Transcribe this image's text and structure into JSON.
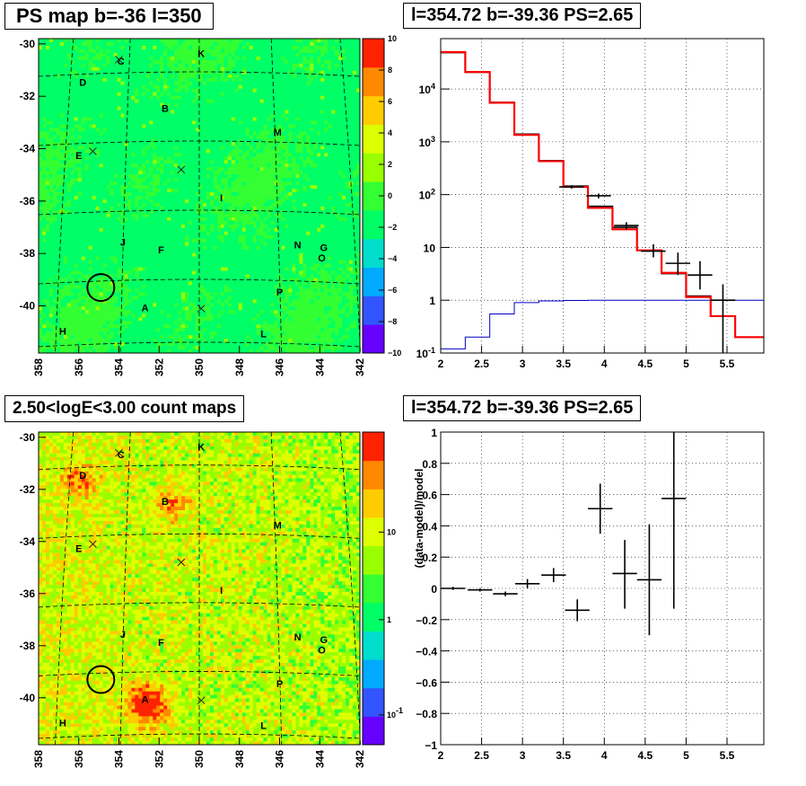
{
  "panels": {
    "tl": {
      "title": "PS map b=-36 l=350"
    },
    "tr": {
      "title": "l=354.72 b=-39.36 PS=2.65"
    },
    "bl": {
      "title": "2.50<logE<3.00 count maps"
    },
    "br": {
      "title": "l=354.72 b=-39.36 PS=2.65"
    }
  },
  "chart_data": [
    {
      "type": "heatmap",
      "title": "PS map b=-36 l=350",
      "x_ticks": [
        "358",
        "356",
        "354",
        "352",
        "350",
        "348",
        "346",
        "344",
        "342"
      ],
      "y_ticks": [
        "-30",
        "-32",
        "-34",
        "-36",
        "-38",
        "-40"
      ],
      "xlim": [
        358,
        342
      ],
      "ylim": [
        -41.8,
        -29.8
      ],
      "colorbar": {
        "range": [
          -10,
          10
        ],
        "ticks": [
          "10",
          "8",
          "6",
          "4",
          "2",
          "0",
          "−2",
          "−4",
          "−6",
          "−8",
          "−10"
        ]
      },
      "colors": [
        "#6600ff",
        "#3355ff",
        "#00aaff",
        "#00ddcc",
        "#00ff66",
        "#33ff33",
        "#99ff00",
        "#ddff00",
        "#ffcc00",
        "#ff8800",
        "#ff2200"
      ],
      "sources": [
        {
          "label": "C",
          "l": 353.9,
          "b": -30.8
        },
        {
          "label": "K",
          "l": 349.9,
          "b": -30.5
        },
        {
          "label": "D",
          "l": 355.8,
          "b": -31.6
        },
        {
          "label": "B",
          "l": 351.7,
          "b": -32.6
        },
        {
          "label": "M",
          "l": 346.1,
          "b": -33.5
        },
        {
          "label": "E",
          "l": 356.0,
          "b": -34.4
        },
        {
          "label": "I",
          "l": 348.9,
          "b": -36.0
        },
        {
          "label": "J",
          "l": 353.8,
          "b": -37.7
        },
        {
          "label": "F",
          "l": 351.9,
          "b": -38.0
        },
        {
          "label": "N",
          "l": 345.1,
          "b": -37.8
        },
        {
          "label": "G",
          "l": 343.8,
          "b": -37.9
        },
        {
          "label": "O",
          "l": 343.9,
          "b": -38.3
        },
        {
          "label": "P",
          "l": 346.0,
          "b": -39.6
        },
        {
          "label": "A",
          "l": 352.7,
          "b": -40.2
        },
        {
          "label": "H",
          "l": 356.8,
          "b": -41.1
        },
        {
          "label": "L",
          "l": 346.8,
          "b": -41.2
        }
      ],
      "crosses": [
        {
          "l": 354.0,
          "b": -30.6
        },
        {
          "l": 355.3,
          "b": -34.1
        },
        {
          "l": 350.9,
          "b": -34.8
        },
        {
          "l": 349.9,
          "b": -40.1
        }
      ],
      "circle": {
        "l": 354.9,
        "b": -39.3
      }
    },
    {
      "type": "line",
      "title": "l=354.72 b=-39.36 PS=2.65",
      "x_ticks": [
        "2",
        "2.5",
        "3",
        "3.5",
        "4",
        "4.5",
        "5",
        "5.5"
      ],
      "y_ticks": [
        "10^-1",
        "1",
        "10",
        "10^2",
        "10^3",
        "10^4"
      ],
      "xlim": [
        2.0,
        5.95
      ],
      "ylim": [
        0.1,
        90000
      ],
      "y_scale": "log",
      "grid": true,
      "series": [
        {
          "color": "#ff0000",
          "edges": [
            2.0,
            2.3,
            2.6,
            2.9,
            3.2,
            3.5,
            3.8,
            4.1,
            4.4,
            4.7,
            5.0,
            5.3,
            5.6,
            5.95
          ],
          "values": [
            50000,
            21000,
            5500,
            1350,
            430,
            140,
            56,
            22,
            8.8,
            3.3,
            1.15,
            0.5,
            0.2
          ]
        },
        {
          "color": "#0000cc",
          "edges": [
            2.0,
            2.3,
            2.6,
            2.9,
            3.2,
            3.5,
            3.8,
            4.1,
            4.4,
            4.7,
            5.0,
            5.3,
            5.6,
            5.95
          ],
          "values": [
            0.12,
            0.2,
            0.55,
            0.9,
            0.97,
            0.99,
            1.0,
            1.0,
            1.0,
            1.0,
            1.0,
            1.0,
            1.0
          ]
        },
        {
          "color": "#000000",
          "edges": [
            2.0,
            2.3,
            2.6,
            2.9,
            3.2,
            3.5,
            3.8,
            4.1,
            4.4,
            4.7,
            5.0,
            5.3,
            5.6,
            5.95
          ],
          "values": [
            49000,
            20800,
            5600,
            1400,
            440,
            145,
            60,
            24,
            8.8,
            3.2,
            1.2,
            0.5,
            0.2
          ]
        }
      ],
      "points": [
        {
          "x": 3.6,
          "xerr": 0.15,
          "y": 140,
          "ylo": 130,
          "yhi": 150
        },
        {
          "x": 3.93,
          "xerr": 0.15,
          "y": 95,
          "ylo": 85,
          "yhi": 105
        },
        {
          "x": 4.27,
          "xerr": 0.15,
          "y": 26,
          "ylo": 22,
          "yhi": 30
        },
        {
          "x": 4.6,
          "xerr": 0.15,
          "y": 8.5,
          "ylo": 6.5,
          "yhi": 11.5
        },
        {
          "x": 4.9,
          "xerr": 0.15,
          "y": 5,
          "ylo": 3,
          "yhi": 8
        },
        {
          "x": 5.17,
          "xerr": 0.15,
          "y": 3,
          "ylo": 1.6,
          "yhi": 5.5
        },
        {
          "x": 5.45,
          "xerr": 0.15,
          "y": 1,
          "ylo": 0.1,
          "yhi": 2
        }
      ]
    },
    {
      "type": "heatmap",
      "title": "2.50<logE<3.00 count maps",
      "x_ticks": [
        "358",
        "356",
        "354",
        "352",
        "350",
        "348",
        "346",
        "344",
        "342"
      ],
      "y_ticks": [
        "-30",
        "-32",
        "-34",
        "-36",
        "-38",
        "-40"
      ],
      "xlim": [
        358,
        342
      ],
      "ylim": [
        -41.8,
        -29.8
      ],
      "colorbar": {
        "scale": "log",
        "ticks": [
          "10",
          "1",
          "10^-1"
        ]
      },
      "colors": [
        "#6600ff",
        "#3355ff",
        "#00aaff",
        "#00ddcc",
        "#00ff66",
        "#33ff33",
        "#99ff00",
        "#ddff00",
        "#ffcc00",
        "#ff8800",
        "#ff2200"
      ],
      "hotspots": [
        {
          "l": 352.7,
          "b": -40.2,
          "level": 1.0
        },
        {
          "l": 351.3,
          "b": -32.5,
          "level": 0.5
        },
        {
          "l": 356.0,
          "b": -31.6,
          "level": 0.5
        }
      ]
    },
    {
      "type": "scatter",
      "title": "l=354.72 b=-39.36 PS=2.65",
      "ylabel": "(data-model)/model",
      "x_ticks": [
        "2",
        "2.5",
        "3",
        "3.5",
        "4",
        "4.5",
        "5",
        "5.5"
      ],
      "y_ticks": [
        "−1",
        "−0.8",
        "−0.6",
        "−0.4",
        "−0.2",
        "0",
        "0.2",
        "0.4",
        "0.6",
        "0.8",
        "1"
      ],
      "xlim": [
        2.0,
        5.95
      ],
      "ylim": [
        -1,
        1
      ],
      "grid": true,
      "points": [
        {
          "x": 2.15,
          "xerr": 0.15,
          "y": 0.0,
          "ylo": -0.01,
          "yhi": 0.01
        },
        {
          "x": 2.48,
          "xerr": 0.15,
          "y": -0.01,
          "ylo": -0.02,
          "yhi": 0.0
        },
        {
          "x": 2.79,
          "xerr": 0.15,
          "y": -0.035,
          "ylo": -0.05,
          "yhi": -0.02
        },
        {
          "x": 3.06,
          "xerr": 0.15,
          "y": 0.03,
          "ylo": 0.0,
          "yhi": 0.06
        },
        {
          "x": 3.38,
          "xerr": 0.15,
          "y": 0.085,
          "ylo": 0.04,
          "yhi": 0.13
        },
        {
          "x": 3.67,
          "xerr": 0.15,
          "y": -0.14,
          "ylo": -0.21,
          "yhi": -0.07
        },
        {
          "x": 3.95,
          "xerr": 0.15,
          "y": 0.51,
          "ylo": 0.35,
          "yhi": 0.67
        },
        {
          "x": 4.25,
          "xerr": 0.15,
          "y": 0.095,
          "ylo": -0.13,
          "yhi": 0.31
        },
        {
          "x": 4.55,
          "xerr": 0.15,
          "y": 0.055,
          "ylo": -0.3,
          "yhi": 0.41
        },
        {
          "x": 4.85,
          "xerr": 0.15,
          "y": 0.575,
          "ylo": -0.13,
          "yhi": 1.0
        }
      ]
    }
  ]
}
